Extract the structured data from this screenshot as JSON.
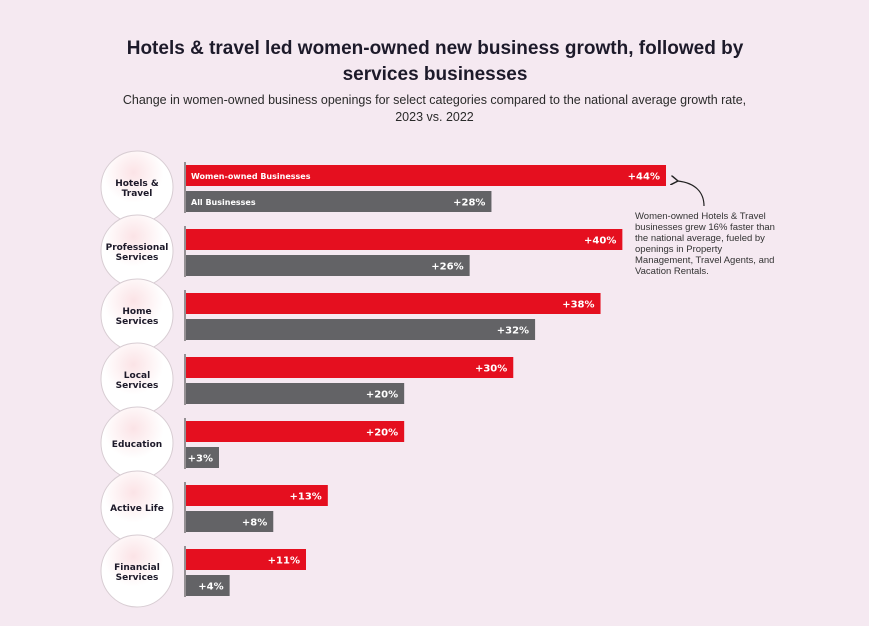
{
  "chart_data": {
    "type": "bar",
    "orientation": "horizontal",
    "title": "Hotels & travel led women-owned new business growth, followed by services businesses",
    "subtitle": "Change in women-owned business openings for select categories compared to the national average growth rate, 2023 vs. 2022",
    "categories": [
      [
        "Hotels &",
        "Travel"
      ],
      [
        "Professional",
        "Services"
      ],
      [
        "Home",
        "Services"
      ],
      [
        "Local",
        "Services"
      ],
      [
        "Education"
      ],
      [
        "Active Life"
      ],
      [
        "Financial",
        "Services"
      ]
    ],
    "series": [
      {
        "name": "Women-owned Businesses",
        "color": "#e50f1f",
        "values": [
          44,
          40,
          38,
          30,
          20,
          13,
          11
        ]
      },
      {
        "name": "All Businesses",
        "color": "#636366",
        "values": [
          28,
          26,
          32,
          20,
          3,
          8,
          4
        ]
      }
    ],
    "value_format": "+{v}%",
    "xlim": [
      0,
      44
    ],
    "grid": false,
    "legend": "inline on first bars",
    "annotation": "Women-owned Hotels & Travel businesses grew 16% faster than the national average, fueled by openings in Property Management, Travel Agents, and Vacation Rentals."
  }
}
